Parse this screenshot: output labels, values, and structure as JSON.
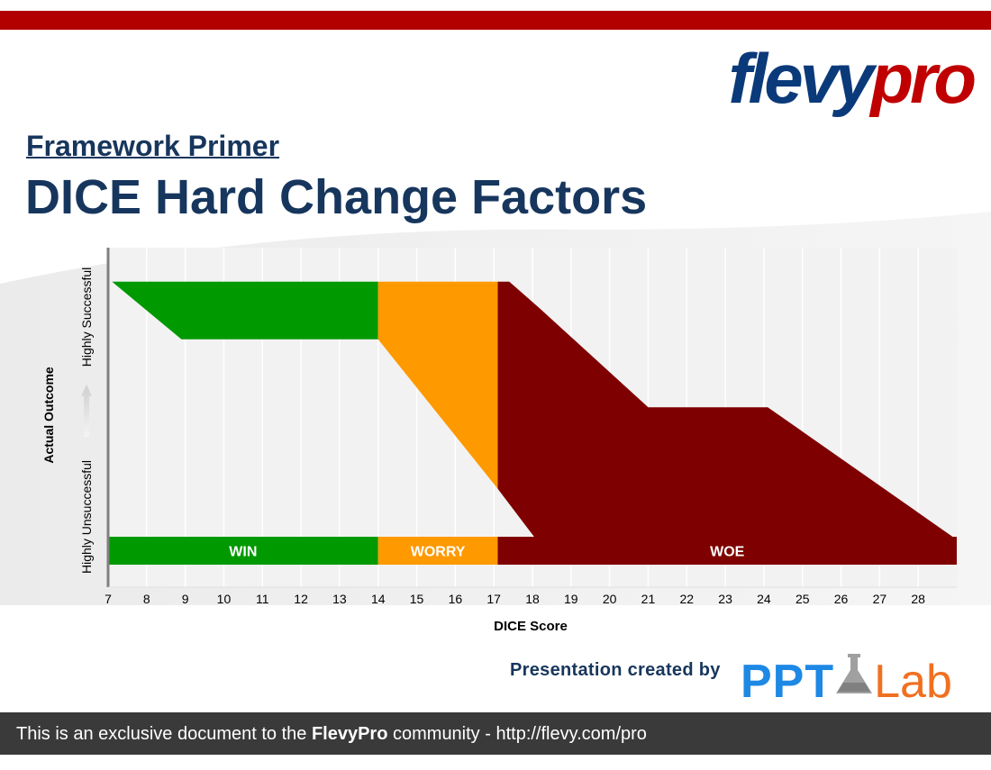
{
  "header": {
    "logo_flevy": "flevy",
    "logo_pro": "pro",
    "subtitle": "Framework Primer",
    "title": "DICE Hard Change Factors"
  },
  "footer": {
    "credit": "Presentation created by",
    "ppt_logo_ppt": "PPT",
    "ppt_logo_lab": "Lab",
    "text_before": "This is an exclusive document to the ",
    "text_brand": "FlevyPro",
    "text_after": " community - http://flevy.com/pro"
  },
  "colors": {
    "win": "#009900",
    "worry": "#ff9900",
    "woe": "#7f0000",
    "brand_red": "#b20000",
    "brand_blue": "#17365d"
  },
  "chart_data": {
    "type": "area",
    "xlabel": "DICE Score",
    "ylabel": "Actual Outcome",
    "y_low_label": "Highly Unsuccessful",
    "y_high_label": "Highly Successful",
    "x_ticks": [
      7,
      8,
      9,
      10,
      11,
      12,
      13,
      14,
      15,
      16,
      17,
      18,
      19,
      20,
      21,
      22,
      23,
      24,
      25,
      26,
      27,
      28
    ],
    "xlim": [
      7,
      29
    ],
    "ylim": [
      0,
      10
    ],
    "grid": true,
    "zones": [
      {
        "name": "WIN",
        "color": "#009900",
        "x_range": [
          7,
          14
        ],
        "polygon": [
          [
            7.1,
            9.0
          ],
          [
            14,
            9.0
          ],
          [
            14,
            7.3
          ],
          [
            8.9,
            7.3
          ]
        ]
      },
      {
        "name": "WORRY",
        "color": "#ff9900",
        "x_range": [
          14,
          17.1
        ],
        "polygon": [
          [
            14,
            9.0
          ],
          [
            17.1,
            9.0
          ],
          [
            17.1,
            2.9
          ],
          [
            14,
            7.3
          ]
        ]
      },
      {
        "name": "WOE",
        "color": "#7f0000",
        "x_range": [
          17.1,
          29
        ],
        "polygon": [
          [
            17.1,
            9.0
          ],
          [
            17.4,
            9.0
          ],
          [
            18.2,
            8.2
          ],
          [
            21,
            5.3
          ],
          [
            24.1,
            5.3
          ],
          [
            29,
            1.4
          ],
          [
            18.1,
            1.4
          ],
          [
            17.1,
            2.9
          ]
        ]
      }
    ]
  }
}
